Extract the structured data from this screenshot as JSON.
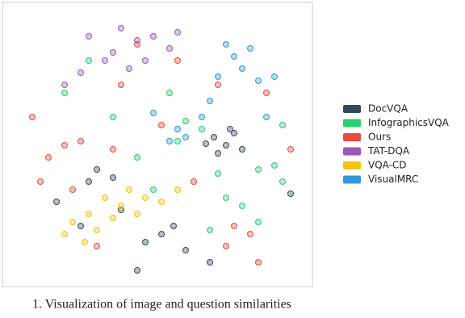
{
  "chart_data": {
    "type": "scatter",
    "xlim": [
      0,
      350
    ],
    "ylim": [
      0,
      330
    ],
    "series": [
      {
        "name": "DocVQA",
        "color": "#34495e",
        "x": [
          245,
          260,
          270,
          250,
          235,
          280,
          265,
          100,
          120,
          90,
          180,
          160,
          195,
          80,
          150,
          240,
          210,
          130,
          50,
          340
        ],
        "values": [
          175,
          165,
          180,
          155,
          167,
          160,
          185,
          135,
          125,
          120,
          55,
          45,
          65,
          65,
          10,
          20,
          35,
          85,
          95,
          105
        ]
      },
      {
        "name": "InfographicsVQA",
        "color": "#2ecc71",
        "x": [
          300,
          320,
          330,
          210,
          230,
          200,
          150,
          260,
          280,
          190,
          120,
          60,
          300,
          240,
          90,
          330,
          170,
          250
        ],
        "values": [
          135,
          140,
          120,
          195,
          185,
          170,
          150,
          100,
          90,
          230,
          200,
          230,
          70,
          60,
          270,
          190,
          110,
          130
        ]
      },
      {
        "name": "Ours",
        "color": "#e74c3c",
        "x": [
          60,
          40,
          80,
          30,
          270,
          290,
          260,
          150,
          200,
          340,
          100,
          70,
          120,
          220,
          310,
          180,
          20,
          250,
          130,
          300
        ],
        "values": [
          165,
          150,
          170,
          120,
          65,
          55,
          40,
          290,
          270,
          160,
          40,
          110,
          160,
          120,
          230,
          190,
          200,
          240,
          240,
          20
        ]
      },
      {
        "name": "TAT-DQA",
        "color": "#9b59b6",
        "x": [
          150,
          170,
          130,
          190,
          110,
          80,
          60,
          140,
          200,
          120,
          90,
          160
        ],
        "values": [
          295,
          300,
          310,
          285,
          270,
          255,
          240,
          260,
          305,
          280,
          300,
          270
        ]
      },
      {
        "name": "VQA-CD",
        "color": "#f1c40f",
        "x": [
          140,
          160,
          130,
          180,
          110,
          90,
          70,
          60,
          150,
          120,
          200,
          85,
          100
        ],
        "values": [
          110,
          100,
          90,
          95,
          100,
          80,
          70,
          55,
          80,
          75,
          110,
          45,
          60
        ]
      },
      {
        "name": "VisualMRC",
        "color": "#3498db",
        "x": [
          280,
          300,
          270,
          320,
          250,
          210,
          200,
          190,
          230,
          290,
          240,
          310,
          170,
          260
        ],
        "values": [
          260,
          245,
          275,
          250,
          250,
          175,
          185,
          170,
          200,
          285,
          220,
          200,
          205,
          290
        ]
      }
    ]
  },
  "caption": "1.  Visualization of image and question similarities"
}
